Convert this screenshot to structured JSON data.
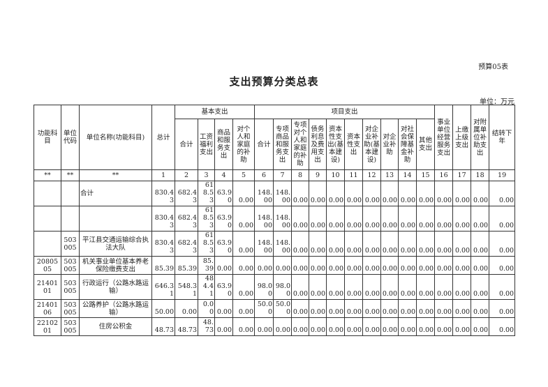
{
  "form_no": "预算05表",
  "title": "支出预算分类总表",
  "unit": "单位：万元",
  "header": {
    "func_subject": "功能科目",
    "unit_code": "单位代码",
    "unit_name": "单位名称(功能科目)",
    "total": "总计",
    "basic": "基本支出",
    "project": "项目支出",
    "basic_cols": [
      "合计",
      "工资福利支出",
      "商品和服务支出",
      "对个人和家庭的补助"
    ],
    "project_cols": [
      "合计",
      "专项商品和服务支出",
      "专项对个人和家庭的补助",
      "债务利息及费用支出",
      "资本性支出(基本建设)",
      "资本性支出",
      "对企业补助(基本建设)",
      "对企业补助",
      "对社会保障基金补助",
      "其他支出"
    ],
    "other_cols": [
      "事业单位经营服务支出",
      "上缴上级支出",
      "对附属单位补助支出",
      "结转下年"
    ],
    "index_row": [
      "**",
      "**",
      "**",
      "1",
      "2",
      "3",
      "4",
      "5",
      "6",
      "7",
      "8",
      "9",
      "10",
      "11",
      "12",
      "13",
      "14",
      "15",
      "16",
      "17",
      "18",
      "19"
    ]
  },
  "rows": [
    [
      "",
      "",
      "合计",
      "830.43",
      "682.43",
      "618.53",
      "63.90",
      "0.00",
      "148.00",
      "148.00",
      "0.00",
      "0.00",
      "0.00",
      "0.00",
      "0.00",
      "0.00",
      "0.00",
      "0.00",
      "0.00",
      "0.00",
      "0.00",
      "0.00"
    ],
    [
      "",
      "",
      "",
      "830.43",
      "682.43",
      "618.53",
      "63.90",
      "0.00",
      "148.00",
      "148.00",
      "0.00",
      "0.00",
      "0.00",
      "0.00",
      "0.00",
      "0.00",
      "0.00",
      "0.00",
      "0.00",
      "0.00",
      "0.00",
      "0.00"
    ],
    [
      "",
      "503005",
      "平江县交通运输综合执法大队",
      "830.43",
      "682.43",
      "618.53",
      "63.90",
      "0.00",
      "148.00",
      "148.00",
      "0.00",
      "0.00",
      "0.00",
      "0.00",
      "0.00",
      "0.00",
      "0.00",
      "0.00",
      "0.00",
      "0.00",
      "0.00",
      "0.00"
    ],
    [
      "2080505",
      "503005",
      "机关事业单位基本养老保险缴费支出",
      "85.39",
      "85.39",
      "85.39",
      "0.00",
      "0.00",
      "0.00",
      "0.00",
      "0.00",
      "0.00",
      "0.00",
      "0.00",
      "0.00",
      "0.00",
      "0.00",
      "0.00",
      "0.00",
      "0.00",
      "0.00",
      "0.00"
    ],
    [
      "2140101",
      "503005",
      "行政运行（公路水路运输）",
      "646.31",
      "548.31",
      "484.41",
      "63.90",
      "0.00",
      "98.00",
      "98.00",
      "0.00",
      "0.00",
      "0.00",
      "0.00",
      "0.00",
      "0.00",
      "0.00",
      "0.00",
      "0.00",
      "0.00",
      "0.00",
      "0.00"
    ],
    [
      "2140106",
      "503005",
      "公路养护（公路水路运输）",
      "50.00",
      "0.00",
      "0.00",
      "0.00",
      "0.00",
      "50.00",
      "50.00",
      "0.00",
      "0.00",
      "0.00",
      "0.00",
      "0.00",
      "0.00",
      "0.00",
      "0.00",
      "0.00",
      "0.00",
      "0.00",
      "0.00"
    ],
    [
      "2210201",
      "503005",
      "住房公积金",
      "48.73",
      "48.73",
      "48.73",
      "0.00",
      "0.00",
      "0.00",
      "0.00",
      "0.00",
      "0.00",
      "0.00",
      "0.00",
      "0.00",
      "0.00",
      "0.00",
      "0.00",
      "0.00",
      "0.00",
      "0.00",
      "0.00"
    ]
  ]
}
